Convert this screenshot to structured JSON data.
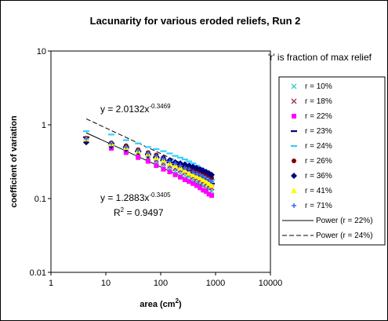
{
  "chart_data": {
    "type": "scatter",
    "title": "Lacunarity for various eroded reliefs, Run 2",
    "xlabel": {
      "text": "area (cm",
      "sup": "2",
      "tail": ")"
    },
    "ylabel": "coefficient of variation",
    "x_scale": "log",
    "y_scale": "log",
    "xlim": [
      1,
      10000
    ],
    "ylim": [
      0.01,
      10
    ],
    "x_ticks": [
      "1",
      "10",
      "100",
      "1000",
      "10000"
    ],
    "y_ticks": [
      "10",
      "1",
      "0.1",
      "0.01"
    ],
    "note": "'r' is fraction of max relief",
    "series": [
      {
        "name": "r = 10%",
        "marker": "x",
        "color": "#33cccc",
        "x": [
          4.4,
          12.6,
          23.4,
          38.8,
          58.9,
          83,
          112,
          146,
          184,
          228,
          276,
          329,
          388,
          452,
          521,
          595,
          674,
          758,
          848
        ],
        "y": [
          0.6,
          0.5,
          0.44,
          0.39,
          0.345,
          0.31,
          0.28,
          0.255,
          0.235,
          0.22,
          0.205,
          0.195,
          0.18,
          0.17,
          0.16,
          0.15,
          0.14,
          0.135,
          0.125
        ]
      },
      {
        "name": "r = 18%",
        "marker": "x",
        "color": "#993366",
        "x": [
          4.4,
          12.6,
          23.4,
          38.8,
          58.9,
          83,
          112,
          146,
          184,
          228,
          276,
          329,
          388,
          452,
          521,
          595,
          674,
          758,
          848
        ],
        "y": [
          0.63,
          0.53,
          0.47,
          0.41,
          0.36,
          0.33,
          0.3,
          0.275,
          0.255,
          0.24,
          0.225,
          0.21,
          0.195,
          0.185,
          0.175,
          0.165,
          0.155,
          0.145,
          0.14
        ]
      },
      {
        "name": "r = 22%",
        "marker": "square",
        "color": "#ff00ff",
        "x": [
          4.4,
          12.6,
          23.4,
          38.8,
          58.9,
          83,
          112,
          146,
          184,
          228,
          276,
          329,
          388,
          452,
          521,
          595,
          674,
          758,
          848
        ],
        "y": [
          0.6,
          0.48,
          0.42,
          0.36,
          0.32,
          0.28,
          0.25,
          0.23,
          0.21,
          0.195,
          0.18,
          0.17,
          0.16,
          0.15,
          0.14,
          0.13,
          0.125,
          0.115,
          0.11
        ]
      },
      {
        "name": "r = 23%",
        "marker": "dash",
        "color": "#000080",
        "x": [
          4.4,
          12.6,
          23.4,
          38.8,
          58.9,
          83,
          112,
          146,
          184,
          228,
          276,
          329,
          388,
          452,
          521,
          595,
          674,
          758,
          848
        ],
        "y": [
          0.68,
          0.56,
          0.5,
          0.44,
          0.4,
          0.36,
          0.33,
          0.31,
          0.29,
          0.27,
          0.25,
          0.24,
          0.225,
          0.21,
          0.2,
          0.19,
          0.18,
          0.17,
          0.16
        ]
      },
      {
        "name": "r = 24%",
        "marker": "dash",
        "color": "#33ccff",
        "x": [
          4.4,
          12.6,
          23.4,
          38.8,
          58.9,
          83,
          112,
          146,
          184,
          228,
          276,
          329,
          388,
          452,
          521,
          595,
          674,
          758,
          848
        ],
        "y": [
          0.82,
          0.74,
          0.62,
          0.56,
          0.5,
          0.47,
          0.44,
          0.41,
          0.38,
          0.36,
          0.34,
          0.32,
          0.3,
          0.28,
          0.26,
          0.24,
          0.22,
          0.2,
          0.18
        ]
      },
      {
        "name": "r = 26%",
        "marker": "circle",
        "color": "#800000",
        "x": [
          4.4,
          12.6,
          23.4,
          38.8,
          58.9,
          83,
          112,
          146,
          184,
          228,
          276,
          329,
          388,
          452,
          521,
          595,
          674,
          758,
          848
        ],
        "y": [
          0.66,
          0.57,
          0.52,
          0.46,
          0.42,
          0.39,
          0.36,
          0.33,
          0.31,
          0.29,
          0.28,
          0.26,
          0.25,
          0.24,
          0.23,
          0.22,
          0.21,
          0.2,
          0.19
        ]
      },
      {
        "name": "r = 36%",
        "marker": "diamond",
        "color": "#000080",
        "x": [
          4.4,
          12.6,
          23.4,
          38.8,
          58.9,
          83,
          112,
          146,
          184,
          228,
          276,
          329,
          388,
          452,
          521,
          595,
          674,
          758,
          848
        ],
        "y": [
          0.58,
          0.52,
          0.47,
          0.43,
          0.39,
          0.37,
          0.35,
          0.33,
          0.31,
          0.3,
          0.29,
          0.28,
          0.27,
          0.26,
          0.25,
          0.24,
          0.23,
          0.22,
          0.21
        ]
      },
      {
        "name": "r = 41%",
        "marker": "triangle",
        "color": "#ffff00",
        "x": [
          4.4,
          12.6,
          23.4,
          38.8,
          58.9,
          83,
          112,
          146,
          184,
          228,
          276,
          329,
          388,
          452,
          521,
          595,
          674,
          758,
          848
        ],
        "y": [
          0.64,
          0.55,
          0.49,
          0.44,
          0.4,
          0.36,
          0.33,
          0.3,
          0.28,
          0.26,
          0.24,
          0.22,
          0.21,
          0.2,
          0.19,
          0.18,
          0.17,
          0.16,
          0.15
        ]
      },
      {
        "name": "r = 71%",
        "marker": "plus",
        "color": "#3366ff",
        "x": [
          4.4,
          12.6,
          23.4,
          38.8,
          58.9,
          83,
          112,
          146,
          184,
          228,
          276,
          329,
          388,
          452,
          521,
          595,
          674,
          758,
          848
        ],
        "y": [
          0.65,
          0.56,
          0.5,
          0.45,
          0.41,
          0.38,
          0.35,
          0.32,
          0.3,
          0.28,
          0.26,
          0.25,
          0.23,
          0.22,
          0.21,
          0.2,
          0.19,
          0.18,
          0.17
        ]
      }
    ],
    "trendlines": [
      {
        "name": "Power (r = 22%)",
        "style": "solid",
        "a": 1.2883,
        "b": -0.3405,
        "x_range": [
          4.4,
          848
        ]
      },
      {
        "name": "Power (r = 24%)",
        "style": "dashed",
        "a": 2.0132,
        "b": -0.3469,
        "x_range": [
          4.4,
          848
        ]
      }
    ],
    "annotations": [
      {
        "id": "eq24",
        "base": "y = 2.0132x",
        "sup": "-0.3469"
      },
      {
        "id": "eq22",
        "base": "y = 1.2883x",
        "sup": "-0.3405"
      },
      {
        "id": "r2",
        "base": "R",
        "sup": "2",
        "tail": " = 0.9497"
      }
    ],
    "legend_position": "right"
  }
}
